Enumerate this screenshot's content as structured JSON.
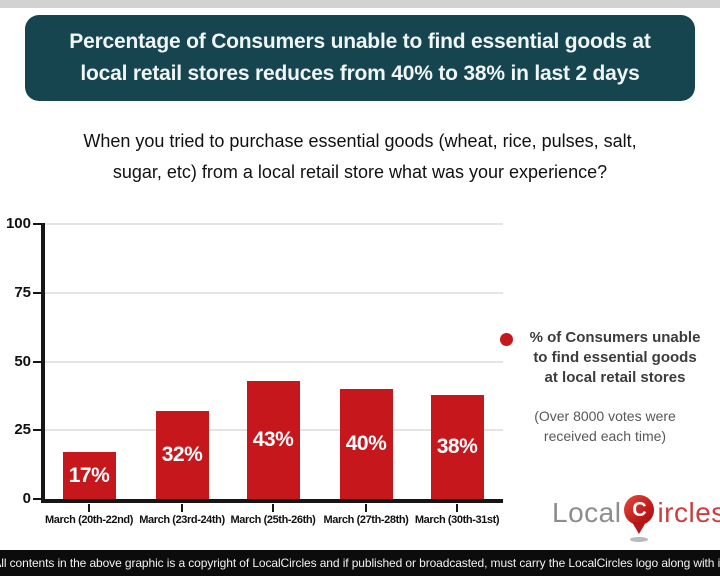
{
  "header": {
    "bg_color": "#16454f",
    "title_line1": "Percentage of Consumers unable to find essential goods at",
    "title_line2": "local retail stores reduces from 40% to 38% in last 2 days"
  },
  "question": {
    "line1": "When you tried to purchase essential goods (wheat, rice, pulses, salt,",
    "line2": "sugar, etc) from a local retail store what was your experience?"
  },
  "chart_data": {
    "type": "bar",
    "categories": [
      "March (20th-22nd)",
      "March (23rd-24th)",
      "March (25th-26th)",
      "March (27th-28th)",
      "March (30th-31st)"
    ],
    "values": [
      17,
      32,
      43,
      40,
      38
    ],
    "data_labels": [
      "17%",
      "32%",
      "43%",
      "40%",
      "38%"
    ],
    "yticks": [
      "0",
      "25",
      "50",
      "75",
      "100"
    ],
    "ylim": [
      0,
      100
    ],
    "xlabel": "",
    "ylabel": "",
    "bar_color": "#c6171c",
    "grid": true,
    "legend_position": "right",
    "series_name": "% of Consumers unable to find essential goods at local retail stores"
  },
  "legend": {
    "marker_color": "#c6171c",
    "lines": [
      "% of Consumers unable",
      "to find essential goods",
      "at local retail stores"
    ],
    "note_lines": [
      "(Over 8000 votes were",
      "received each time)"
    ]
  },
  "logo": {
    "part1": "Local",
    "pin_letter": "C",
    "part2": "ircles",
    "part1_color": "#8d8d8d",
    "part2_color": "#c9403f"
  },
  "footer": {
    "text": "All contents in the above graphic is a copyright of LocalCircles and if published or broadcasted, must carry the LocalCircles logo along with it."
  }
}
